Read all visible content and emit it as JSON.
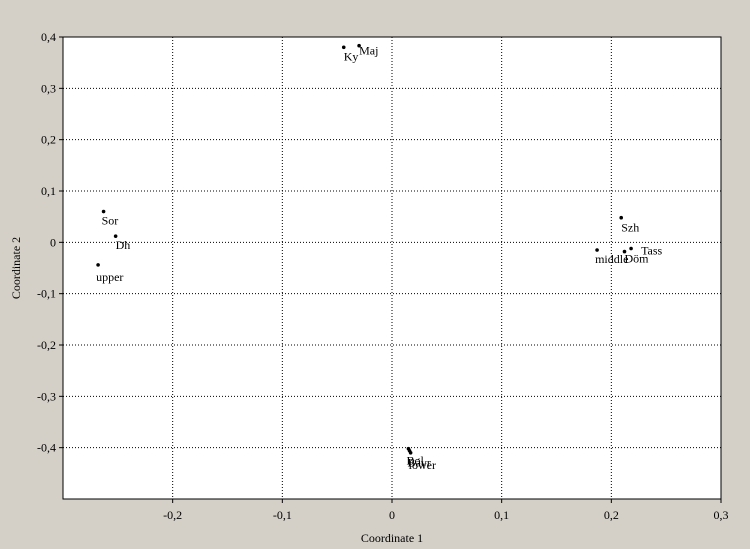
{
  "chart_data": {
    "type": "scatter",
    "title": "",
    "xlabel": "Coordinate 1",
    "ylabel": "Coordinate 2",
    "xlim": [
      -0.3,
      0.3
    ],
    "ylim": [
      -0.5,
      0.4
    ],
    "grid": true,
    "x_ticks": [
      -0.2,
      -0.1,
      0,
      0.1,
      0.2,
      0.3
    ],
    "y_ticks": [
      0.4,
      0.3,
      0.2,
      0.1,
      0,
      -0.1,
      -0.2,
      -0.3,
      -0.4
    ],
    "x_tick_labels": [
      "-0,2",
      "-0,1",
      "0",
      "0,1",
      "0,2",
      "0,3"
    ],
    "y_tick_labels": [
      "0,4",
      "0,3",
      "0,2",
      "0,1",
      "0",
      "-0,1",
      "-0,2",
      "-0,3",
      "-0,4"
    ],
    "points": [
      {
        "label": "Ky",
        "x": -0.044,
        "y": 0.38
      },
      {
        "label": "Maj",
        "x": -0.03,
        "y": 0.383
      },
      {
        "label": "Sor",
        "x": -0.263,
        "y": 0.06
      },
      {
        "label": "Dh",
        "x": -0.252,
        "y": 0.012
      },
      {
        "label": "upper",
        "x": -0.268,
        "y": -0.044
      },
      {
        "label": "Szh",
        "x": 0.209,
        "y": 0.048
      },
      {
        "label": "Tass",
        "x": 0.218,
        "y": -0.012
      },
      {
        "label": "Döm",
        "x": 0.212,
        "y": -0.018
      },
      {
        "label": "middle",
        "x": 0.187,
        "y": -0.015
      },
      {
        "label": "Bol",
        "x": 0.015,
        "y": -0.402
      },
      {
        "label": "Bávr",
        "x": 0.016,
        "y": -0.406
      },
      {
        "label": "lower",
        "x": 0.017,
        "y": -0.41
      }
    ]
  }
}
